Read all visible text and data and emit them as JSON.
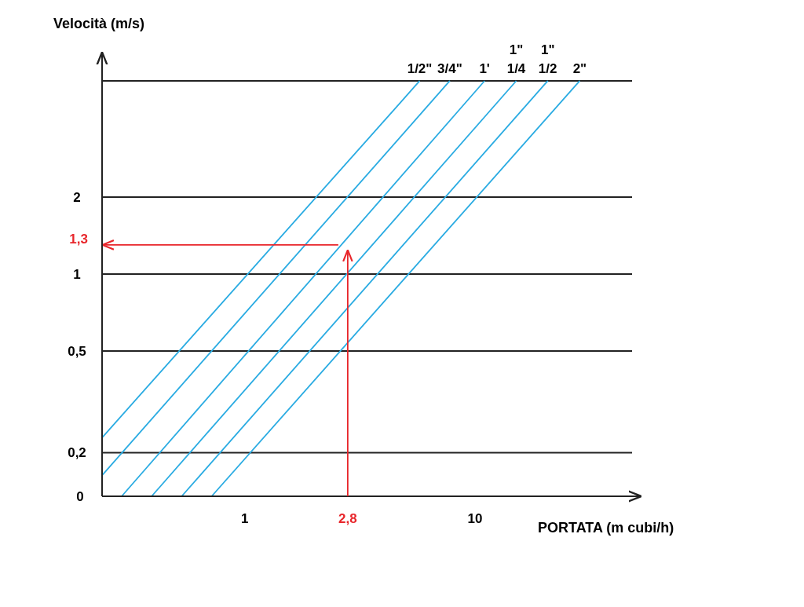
{
  "chart_data": {
    "type": "line",
    "xlabel": "PORTATA (m cubi/h)",
    "ylabel": "Velocità (m/s)",
    "log": "xy",
    "xlim": [
      0.24,
      52
    ],
    "ylim": [
      0.135,
      7.3
    ],
    "xticks": [
      1,
      10
    ],
    "yticks": [
      {
        "value": 0.135,
        "label": "0"
      },
      {
        "value": 0.2,
        "label": "0,2"
      },
      {
        "value": 0.5,
        "label": "0,5"
      },
      1,
      2,
      {
        "value": 5.7,
        "label": null
      }
    ],
    "grid": "y",
    "marker": "none",
    "line_style": "solid",
    "series": [
      {
        "name": "1/2\"",
        "color": "#29abe2",
        "x": [
          0.24,
          5.75
        ],
        "values": [
          0.229,
          5.7
        ]
      },
      {
        "name": "3/4\"",
        "color": "#29abe2",
        "x": [
          0.24,
          7.77
        ],
        "values": [
          0.163,
          5.7
        ]
      },
      {
        "name": "1'",
        "color": "#29abe2",
        "x": [
          0.292,
          11.0
        ],
        "values": [
          0.135,
          5.7
        ]
      },
      {
        "name": "1\" 1/4",
        "color": "#29abe2",
        "x": [
          0.394,
          15.1
        ],
        "values": [
          0.135,
          5.7
        ]
      },
      {
        "name": "1\" 1/2",
        "color": "#29abe2",
        "x": [
          0.532,
          20.7
        ],
        "values": [
          0.135,
          5.7
        ]
      },
      {
        "name": "2\"",
        "color": "#29abe2",
        "x": [
          0.718,
          28.5
        ],
        "values": [
          0.135,
          5.7
        ]
      }
    ],
    "ref_lines": [
      {
        "axis": "x",
        "value": 2.8,
        "label": "2,8",
        "color": "#e8262b"
      },
      {
        "axis": "y",
        "value": 1.3,
        "label": "1,3",
        "color": "#e8262b"
      }
    ]
  }
}
